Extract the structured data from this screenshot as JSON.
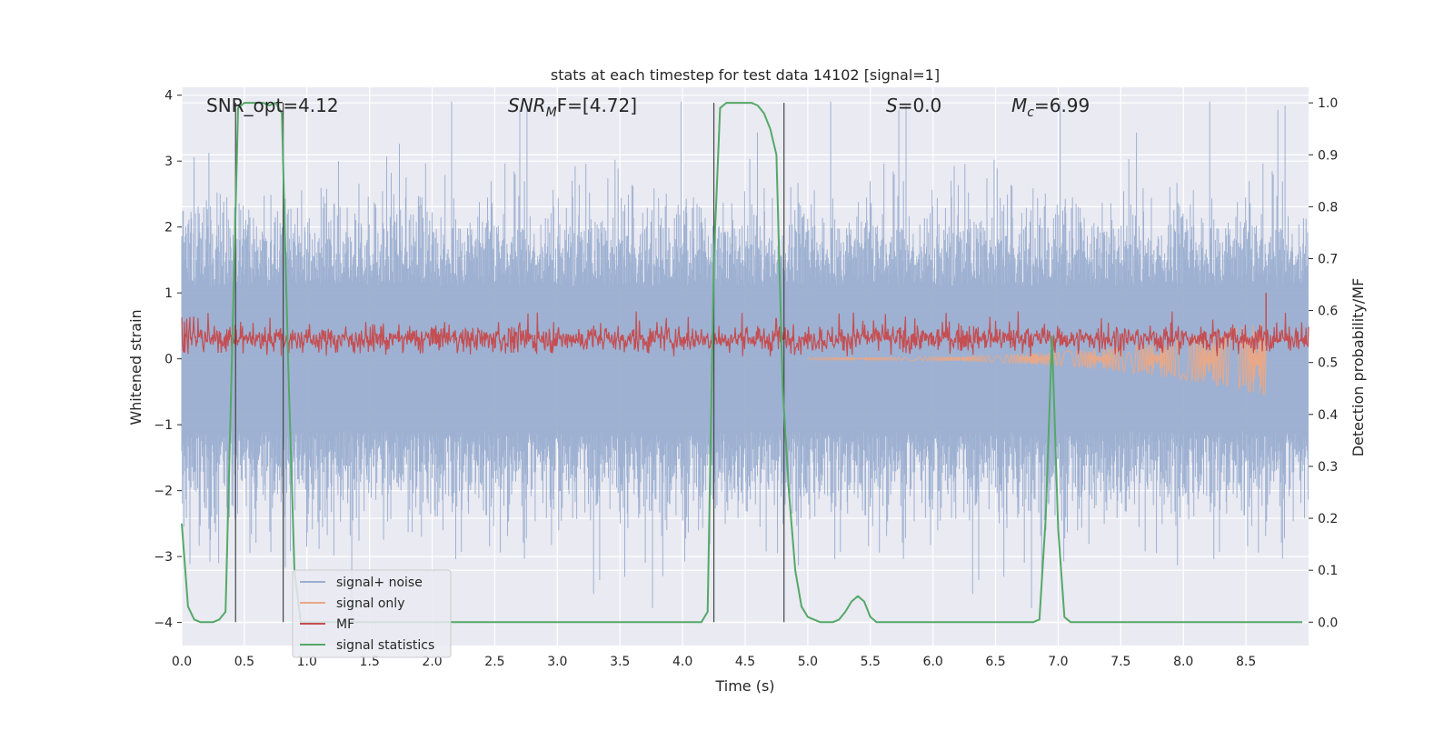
{
  "chart_data": {
    "type": "line",
    "title": "stats at each timestep for test data 14102 [signal=1]",
    "xlabel": "Time (s)",
    "ylabel_left": "Whitened strain",
    "ylabel_right": "Detection probability/MF",
    "xlim": [
      0.0,
      9.0
    ],
    "ylim_left": [
      -4.35,
      4.12
    ],
    "ylim_right": [
      -0.045,
      1.03
    ],
    "x_ticks": [
      "0.0",
      "0.5",
      "1.0",
      "1.5",
      "2.0",
      "2.5",
      "3.0",
      "3.5",
      "4.0",
      "4.5",
      "5.0",
      "5.5",
      "6.0",
      "6.5",
      "7.0",
      "7.5",
      "8.0",
      "8.5"
    ],
    "y_ticks_left": [
      "−4",
      "−3",
      "−2",
      "−1",
      "0",
      "1",
      "2",
      "3",
      "4"
    ],
    "y_ticks_right": [
      "0.0",
      "0.1",
      "0.2",
      "0.3",
      "0.4",
      "0.5",
      "0.6",
      "0.7",
      "0.8",
      "0.9",
      "1.0"
    ],
    "grid": true,
    "legend_position": "lower-left",
    "annotations": {
      "snr_opt": "SNR_opt=4.12",
      "snr_mf_main": "SNR",
      "snr_mf_sub": "M",
      "snr_mf_tail": "F=[4.72]",
      "s_main": "S",
      "s_tail": "=0.0",
      "mc_main": "M",
      "mc_sub": "c",
      "mc_tail": "=6.99"
    },
    "vertical_lines_x": [
      0.43,
      0.81,
      4.25,
      4.81
    ],
    "series": [
      {
        "name": "signal+ noise",
        "color": "#9aaed0",
        "axis": "left",
        "description_level": "noise band approx ±1.5 with spikes to ±3.8",
        "t_range": [
          0.0,
          9.0
        ]
      },
      {
        "name": "signal only",
        "color": "#e8a888",
        "axis": "left",
        "t_range": [
          0.0,
          8.66
        ],
        "end_amplitude": 0.55
      },
      {
        "name": "MF",
        "color": "#c44e52",
        "axis": "left",
        "band": [
          0.05,
          0.55
        ],
        "t_range": [
          0.0,
          9.0
        ]
      },
      {
        "name": "signal statistics",
        "color": "#55a868",
        "axis": "right",
        "x": [
          0.0,
          0.05,
          0.1,
          0.15,
          0.2,
          0.25,
          0.3,
          0.35,
          0.4,
          0.45,
          0.5,
          0.55,
          0.6,
          0.65,
          0.7,
          0.75,
          0.8,
          0.85,
          0.9,
          0.95,
          1.0,
          1.5,
          2.0,
          2.5,
          3.0,
          3.5,
          4.0,
          4.15,
          4.2,
          4.25,
          4.3,
          4.35,
          4.4,
          4.45,
          4.5,
          4.55,
          4.6,
          4.65,
          4.7,
          4.75,
          4.8,
          4.85,
          4.9,
          4.95,
          5.0,
          5.05,
          5.1,
          5.15,
          5.2,
          5.25,
          5.3,
          5.35,
          5.4,
          5.45,
          5.5,
          5.55,
          5.6,
          6.0,
          6.5,
          6.8,
          6.85,
          6.9,
          6.95,
          7.0,
          7.05,
          7.1,
          7.5,
          8.0,
          8.5,
          8.95
        ],
        "y": [
          0.19,
          0.03,
          0.005,
          0.0,
          0.0,
          0.0,
          0.005,
          0.02,
          0.5,
          0.99,
          1.0,
          1.0,
          1.0,
          1.0,
          0.995,
          1.0,
          0.98,
          0.5,
          0.1,
          0.0,
          0.0,
          0.0,
          0.0,
          0.0,
          0.0,
          0.0,
          0.0,
          0.0,
          0.02,
          0.7,
          0.99,
          1.0,
          1.0,
          1.0,
          1.0,
          1.0,
          0.995,
          0.98,
          0.95,
          0.9,
          0.45,
          0.25,
          0.1,
          0.03,
          0.01,
          0.005,
          0.0,
          0.0,
          0.0,
          0.005,
          0.02,
          0.04,
          0.05,
          0.04,
          0.01,
          0.0,
          0.0,
          0.0,
          0.0,
          0.0,
          0.005,
          0.2,
          0.55,
          0.18,
          0.01,
          0.0,
          0.0,
          0.0,
          0.0,
          0.0
        ]
      }
    ]
  }
}
